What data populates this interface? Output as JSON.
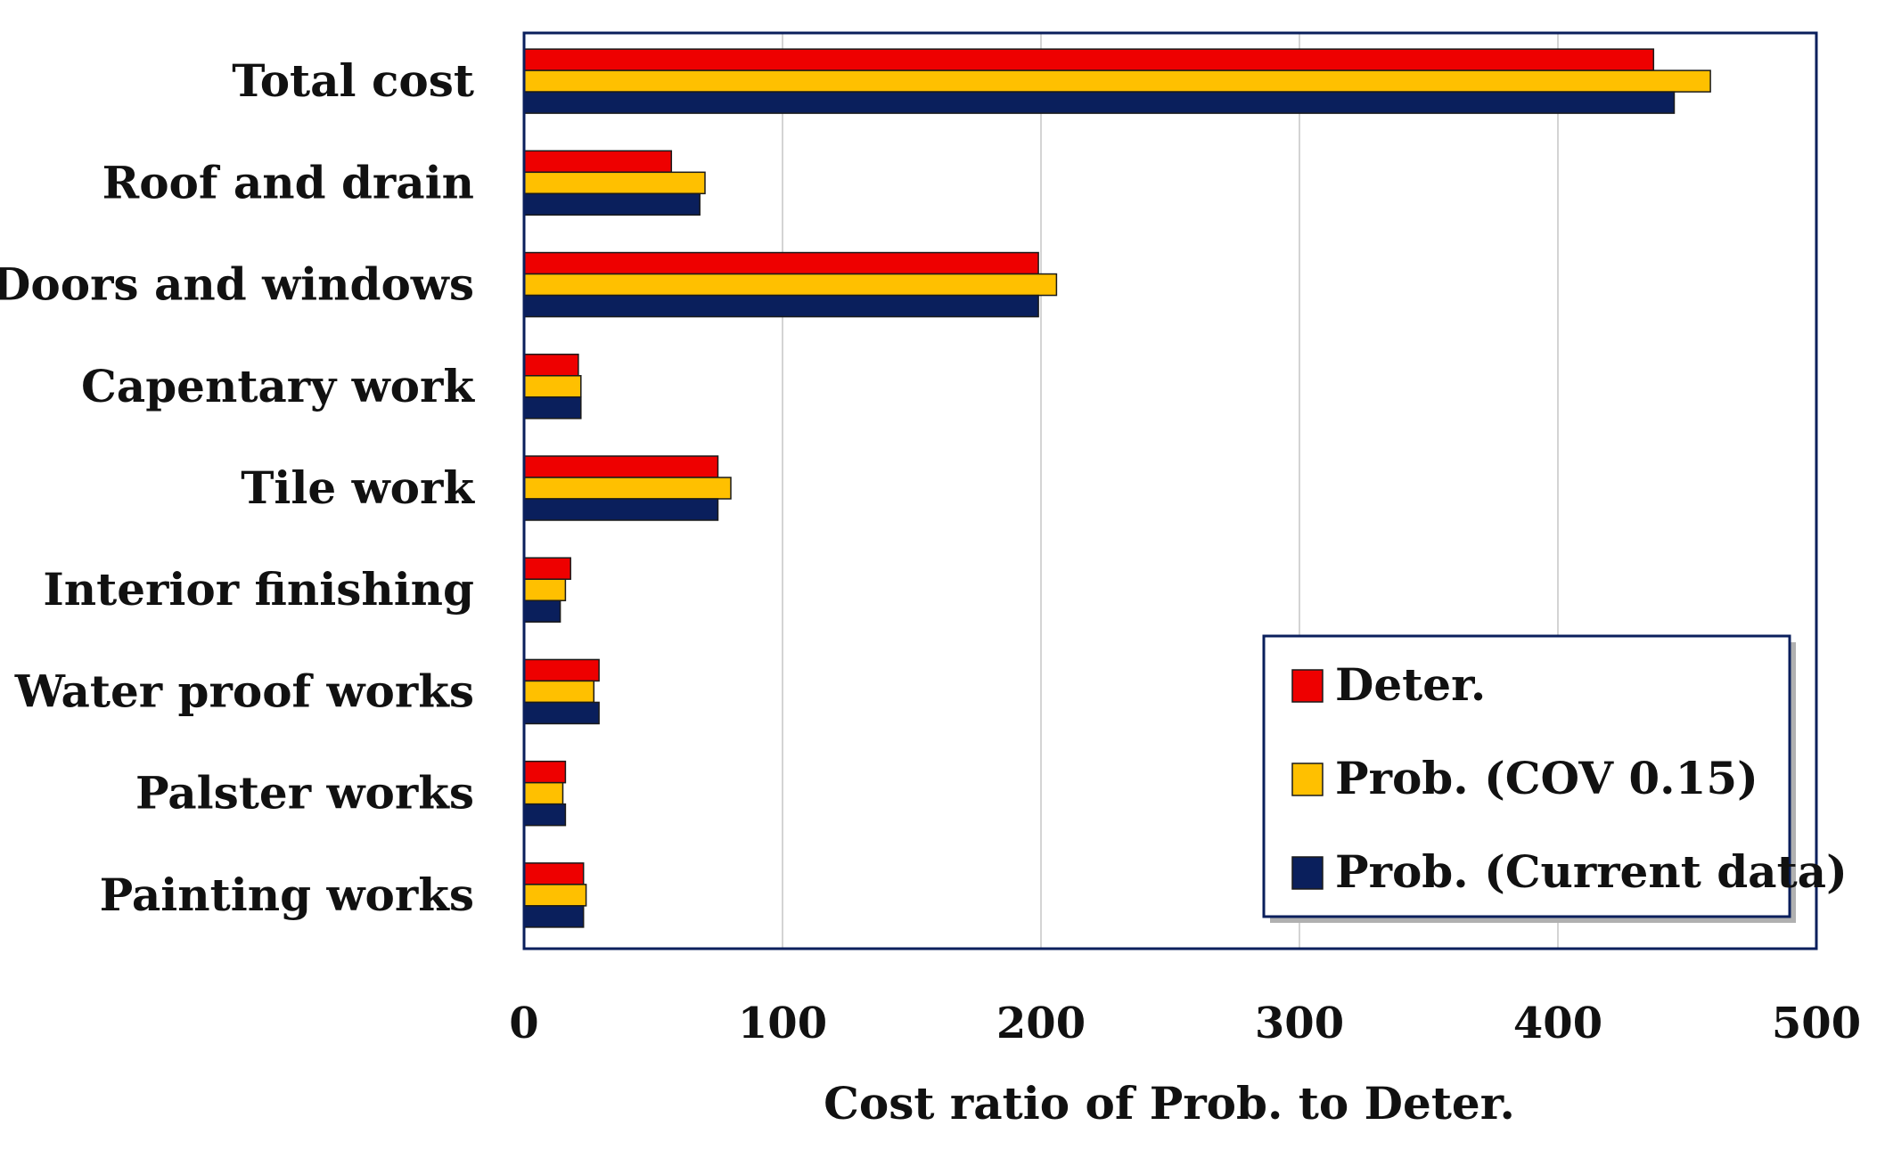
{
  "chart_data": {
    "type": "bar",
    "orientation": "horizontal",
    "title": "",
    "xlabel": "Cost ratio  of Prob. to Deter.",
    "ylabel": "",
    "xlim": [
      0,
      500
    ],
    "xticks": [
      0,
      100,
      200,
      300,
      400,
      500
    ],
    "grid": "vertical",
    "legend_position": "bottom-right",
    "categories": [
      "Total cost",
      "Roof and drain",
      "Doors and windows",
      "Capentary work",
      "Tile work",
      "Interior finishing",
      "Water proof works",
      "Palster works",
      "Painting works"
    ],
    "series": [
      {
        "name": "Deter.",
        "color": "#ee0000",
        "values": [
          437,
          57,
          199,
          21,
          75,
          18,
          29,
          16,
          23
        ]
      },
      {
        "name": "Prob. (COV 0.15)",
        "color": "#ffc000",
        "values": [
          459,
          70,
          206,
          22,
          80,
          16,
          27,
          15,
          24
        ]
      },
      {
        "name": "Prob. (Current data)",
        "color": "#0a1f5c",
        "values": [
          445,
          68,
          199,
          22,
          75,
          14,
          29,
          16,
          23
        ]
      }
    ]
  }
}
